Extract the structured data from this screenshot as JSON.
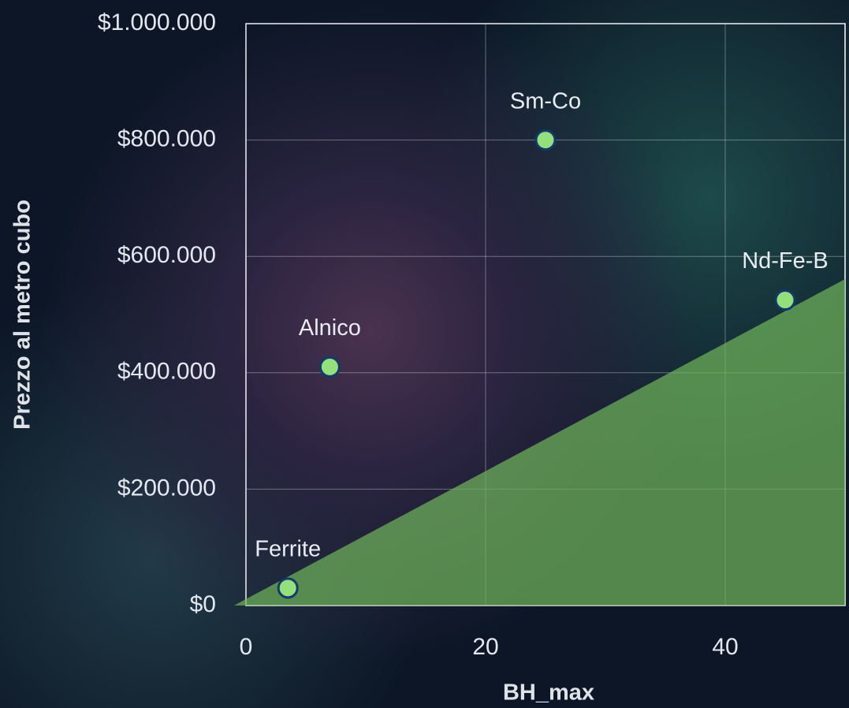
{
  "chart_data": {
    "type": "scatter",
    "xlabel": "BH_max",
    "ylabel": "Prezzo al metro cubo",
    "x": [
      3.5,
      7,
      25,
      45
    ],
    "values": [
      30000,
      410000,
      800000,
      525000
    ],
    "labels": [
      "Ferrite",
      "Alnico",
      "Sm-Co",
      "Nd-Fe-B"
    ],
    "color": "#93e07c",
    "area": {
      "x": [
        -1,
        50
      ],
      "values": [
        0,
        561000
      ],
      "color": "#6fb35a"
    },
    "xlim": [
      0,
      50
    ],
    "xticks": [
      0,
      20,
      40
    ],
    "ylim": [
      0,
      1000000
    ],
    "yticks": [
      {
        "value": 0,
        "label": "$0"
      },
      {
        "value": 200000,
        "label": "$200.000"
      },
      {
        "value": 400000,
        "label": "$400.000"
      },
      {
        "value": 600000,
        "label": "$600.000"
      },
      {
        "value": 800000,
        "label": "$800.000"
      },
      {
        "value": 1000000,
        "label": "$1.000.000"
      }
    ],
    "grid": true
  }
}
